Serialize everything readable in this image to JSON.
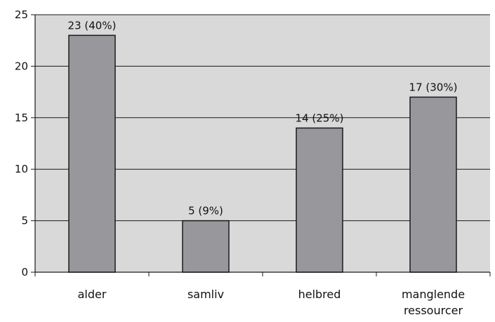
{
  "chart_data": {
    "type": "bar",
    "categories": [
      "alder",
      "samliv",
      "helbred",
      "manglende ressourcer"
    ],
    "category_label_lines": [
      [
        "alder"
      ],
      [
        "samliv"
      ],
      [
        "helbred"
      ],
      [
        "manglende",
        "ressourcer"
      ]
    ],
    "values": [
      23,
      5,
      14,
      17
    ],
    "data_labels": [
      "23 (40%)",
      "5 (9%)",
      "14 (25%)",
      "17 (30%)"
    ],
    "y_ticks": [
      0,
      5,
      10,
      15,
      20,
      25
    ],
    "ylim": [
      0,
      25
    ],
    "title": "",
    "xlabel": "",
    "ylabel": "",
    "grid": true,
    "colors": {
      "plot_background": "#d9d9d9",
      "bar_fill": "#98989c",
      "bar_stroke": "#1a1a1a",
      "grid": "#1a1a1a",
      "axis": "#1a1a1a"
    }
  }
}
